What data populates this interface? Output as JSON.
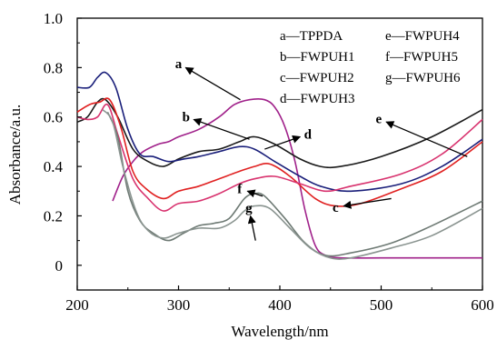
{
  "chart_data": {
    "type": "line",
    "xlabel": "Wavelength/nm",
    "ylabel": "Absorbance/a.u.",
    "xlim": [
      200,
      600
    ],
    "ylim": [
      -0.1,
      1.0
    ],
    "xticks": [
      200,
      300,
      400,
      500,
      600
    ],
    "yticks": [
      0,
      0.2,
      0.4,
      0.6,
      0.8,
      1.0
    ],
    "xtick_labels": [
      "200",
      "300",
      "400",
      "500",
      "600"
    ],
    "ytick_labels": [
      "0",
      "0.2",
      "0.4",
      "0.6",
      "0.8",
      "1.0"
    ],
    "grid": false,
    "legend_position": "top-right",
    "legend": [
      {
        "label": "a—TPPDA",
        "color": "#a0218a"
      },
      {
        "label": "b—FWPUH1",
        "color": "#1a1a1a"
      },
      {
        "label": "c—FWPUH2",
        "color": "#e02020"
      },
      {
        "label": "d—FWPUH3",
        "color": "#1a1f7a"
      },
      {
        "label": "e—FWPUH4",
        "color": "#d8326e"
      },
      {
        "label": "f—FWPUH5",
        "color": "#6e7a74"
      },
      {
        "label": "g—FWPUH6",
        "color": "#8a9490"
      }
    ],
    "series": [
      {
        "name": "a—TPPDA",
        "color": "#a0218a",
        "points": [
          [
            235,
            0.26
          ],
          [
            245,
            0.36
          ],
          [
            255,
            0.42
          ],
          [
            265,
            0.46
          ],
          [
            280,
            0.49
          ],
          [
            290,
            0.5
          ],
          [
            300,
            0.52
          ],
          [
            320,
            0.55
          ],
          [
            340,
            0.6
          ],
          [
            355,
            0.65
          ],
          [
            370,
            0.67
          ],
          [
            385,
            0.67
          ],
          [
            395,
            0.64
          ],
          [
            405,
            0.56
          ],
          [
            415,
            0.42
          ],
          [
            425,
            0.22
          ],
          [
            435,
            0.08
          ],
          [
            445,
            0.04
          ],
          [
            460,
            0.03
          ],
          [
            500,
            0.03
          ],
          [
            550,
            0.03
          ],
          [
            600,
            0.03
          ]
        ]
      },
      {
        "name": "b—FWPUH1",
        "color": "#1a1a1a",
        "points": [
          [
            200,
            0.58
          ],
          [
            210,
            0.6
          ],
          [
            220,
            0.66
          ],
          [
            228,
            0.67
          ],
          [
            240,
            0.6
          ],
          [
            255,
            0.47
          ],
          [
            270,
            0.42
          ],
          [
            285,
            0.4
          ],
          [
            300,
            0.43
          ],
          [
            320,
            0.46
          ],
          [
            340,
            0.47
          ],
          [
            360,
            0.5
          ],
          [
            375,
            0.52
          ],
          [
            395,
            0.49
          ],
          [
            420,
            0.43
          ],
          [
            440,
            0.4
          ],
          [
            460,
            0.4
          ],
          [
            500,
            0.44
          ],
          [
            550,
            0.52
          ],
          [
            600,
            0.63
          ]
        ]
      },
      {
        "name": "c—FWPUH2",
        "color": "#e02020",
        "points": [
          [
            200,
            0.62
          ],
          [
            212,
            0.65
          ],
          [
            222,
            0.66
          ],
          [
            232,
            0.67
          ],
          [
            243,
            0.56
          ],
          [
            255,
            0.38
          ],
          [
            268,
            0.31
          ],
          [
            285,
            0.27
          ],
          [
            300,
            0.3
          ],
          [
            320,
            0.32
          ],
          [
            340,
            0.35
          ],
          [
            360,
            0.38
          ],
          [
            375,
            0.4
          ],
          [
            390,
            0.41
          ],
          [
            410,
            0.36
          ],
          [
            435,
            0.27
          ],
          [
            455,
            0.24
          ],
          [
            480,
            0.25
          ],
          [
            520,
            0.31
          ],
          [
            560,
            0.38
          ],
          [
            600,
            0.5
          ]
        ]
      },
      {
        "name": "d—FWPUH3",
        "color": "#1a1f7a",
        "points": [
          [
            200,
            0.72
          ],
          [
            212,
            0.72
          ],
          [
            220,
            0.76
          ],
          [
            228,
            0.78
          ],
          [
            238,
            0.72
          ],
          [
            250,
            0.55
          ],
          [
            262,
            0.45
          ],
          [
            275,
            0.44
          ],
          [
            290,
            0.42
          ],
          [
            305,
            0.43
          ],
          [
            320,
            0.44
          ],
          [
            340,
            0.46
          ],
          [
            360,
            0.48
          ],
          [
            375,
            0.47
          ],
          [
            395,
            0.42
          ],
          [
            420,
            0.36
          ],
          [
            440,
            0.32
          ],
          [
            470,
            0.3
          ],
          [
            520,
            0.33
          ],
          [
            560,
            0.4
          ],
          [
            600,
            0.51
          ]
        ]
      },
      {
        "name": "e—FWPUH4",
        "color": "#d8326e",
        "points": [
          [
            200,
            0.6
          ],
          [
            210,
            0.59
          ],
          [
            220,
            0.6
          ],
          [
            230,
            0.65
          ],
          [
            240,
            0.53
          ],
          [
            255,
            0.35
          ],
          [
            270,
            0.27
          ],
          [
            285,
            0.22
          ],
          [
            300,
            0.25
          ],
          [
            320,
            0.26
          ],
          [
            340,
            0.29
          ],
          [
            360,
            0.33
          ],
          [
            375,
            0.35
          ],
          [
            395,
            0.36
          ],
          [
            420,
            0.33
          ],
          [
            445,
            0.3
          ],
          [
            470,
            0.32
          ],
          [
            520,
            0.37
          ],
          [
            560,
            0.45
          ],
          [
            600,
            0.59
          ]
        ]
      },
      {
        "name": "f—FWPUH5",
        "color": "#6e7a74",
        "points": [
          [
            230,
            0.62
          ],
          [
            240,
            0.52
          ],
          [
            250,
            0.3
          ],
          [
            262,
            0.18
          ],
          [
            275,
            0.13
          ],
          [
            290,
            0.1
          ],
          [
            305,
            0.13
          ],
          [
            320,
            0.16
          ],
          [
            335,
            0.17
          ],
          [
            350,
            0.19
          ],
          [
            365,
            0.27
          ],
          [
            375,
            0.29
          ],
          [
            385,
            0.28
          ],
          [
            405,
            0.19
          ],
          [
            425,
            0.09
          ],
          [
            445,
            0.04
          ],
          [
            470,
            0.05
          ],
          [
            510,
            0.09
          ],
          [
            550,
            0.16
          ],
          [
            600,
            0.26
          ]
        ]
      },
      {
        "name": "g—FWPUH6",
        "color": "#8a9490",
        "points": [
          [
            225,
            0.63
          ],
          [
            235,
            0.58
          ],
          [
            245,
            0.4
          ],
          [
            258,
            0.22
          ],
          [
            270,
            0.14
          ],
          [
            285,
            0.11
          ],
          [
            300,
            0.13
          ],
          [
            320,
            0.15
          ],
          [
            340,
            0.15
          ],
          [
            355,
            0.18
          ],
          [
            365,
            0.22
          ],
          [
            375,
            0.24
          ],
          [
            390,
            0.23
          ],
          [
            410,
            0.15
          ],
          [
            430,
            0.07
          ],
          [
            450,
            0.03
          ],
          [
            470,
            0.03
          ],
          [
            510,
            0.07
          ],
          [
            550,
            0.12
          ],
          [
            600,
            0.23
          ]
        ]
      }
    ],
    "annotations": [
      {
        "label": "a",
        "arrow_from": [
          361,
          0.67
        ],
        "arrow_to": [
          307,
          0.8
        ]
      },
      {
        "label": "b",
        "arrow_from": [
          370,
          0.51
        ],
        "arrow_to": [
          315,
          0.59
        ]
      },
      {
        "label": "d",
        "arrow_from": [
          385,
          0.47
        ],
        "arrow_to": [
          420,
          0.52
        ]
      },
      {
        "label": "e",
        "arrow_from": [
          585,
          0.44
        ],
        "arrow_to": [
          505,
          0.58
        ]
      },
      {
        "label": "c",
        "arrow_from": [
          510,
          0.27
        ],
        "arrow_to": [
          463,
          0.24
        ]
      },
      {
        "label": "f",
        "arrow_from": [
          383,
          0.28
        ],
        "arrow_to": [
          368,
          0.3
        ]
      },
      {
        "label": "g",
        "arrow_from": [
          376,
          0.1
        ],
        "arrow_to": [
          371,
          0.2
        ]
      }
    ]
  }
}
